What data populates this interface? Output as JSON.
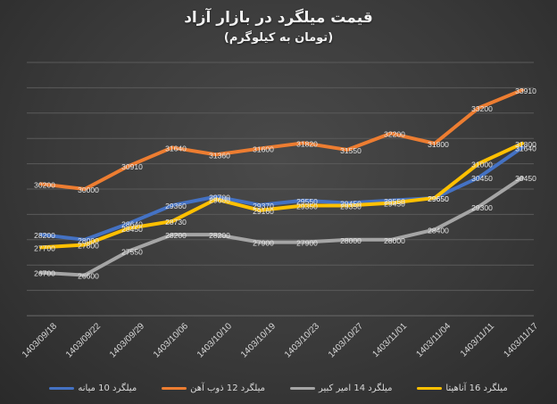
{
  "title": "قیمت میلگرد در بازار آزاد",
  "subtitle": "(تومان به کیلوگرم)",
  "chart_data": {
    "type": "line",
    "title": "قیمت میلگرد در بازار آزاد",
    "subtitle": "(تومان به کیلوگرم)",
    "xlabel": "",
    "ylabel": "",
    "ylim": [
      25000,
      35000
    ],
    "grid": true,
    "legend_position": "bottom",
    "categories": [
      "1403/09/18",
      "1403/09/22",
      "1403/09/29",
      "1403/10/06",
      "1403/10/10",
      "1403/10/19",
      "1403/10/23",
      "1403/10/27",
      "1403/11/01",
      "1403/11/04",
      "1403/11/11",
      "1403/11/17"
    ],
    "series": [
      {
        "name": "میلگرد 10 میانه",
        "color": "#4472c4",
        "values": [
          28200,
          28000,
          28640,
          29360,
          29700,
          29370,
          29550,
          29450,
          29550,
          29650,
          30450,
          31640
        ]
      },
      {
        "name": "میلگرد 12 ذوب آهن",
        "color": "#ed7d31",
        "values": [
          30200,
          30000,
          30910,
          31640,
          31360,
          31600,
          31820,
          31550,
          32200,
          31800,
          33200,
          33910
        ]
      },
      {
        "name": "میلگرد 14 امیر کبیر",
        "color": "#a5a5a5",
        "values": [
          26700,
          26600,
          27550,
          28200,
          28200,
          27900,
          27900,
          28000,
          28000,
          28400,
          29300,
          30450
        ]
      },
      {
        "name": "میلگرد 16 آناهیتا",
        "color": "#ffc000",
        "values": [
          27700,
          27800,
          28450,
          28730,
          29600,
          29160,
          29350,
          29350,
          29450,
          29650,
          31000,
          31800
        ]
      }
    ]
  }
}
